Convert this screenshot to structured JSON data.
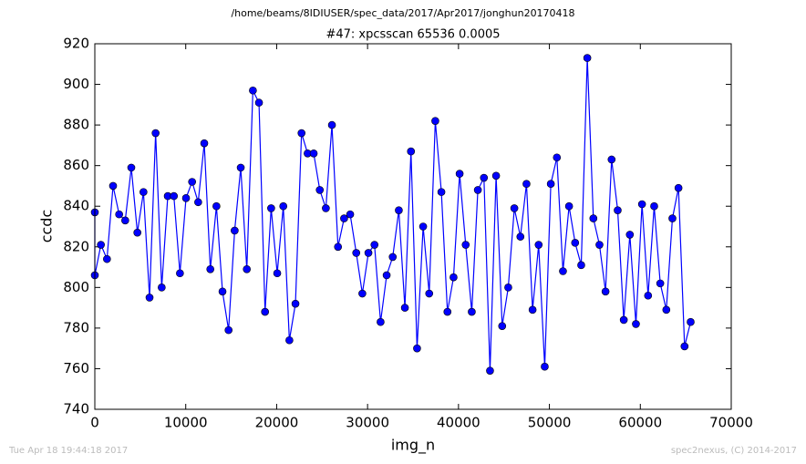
{
  "chart_data": {
    "type": "line",
    "suptitle": "/home/beams/8IDIUSER/spec_data/2017/Apr2017/jonghun20170418",
    "title": "#47: xpcsscan 65536 0.0005",
    "xlabel": "img_n",
    "ylabel": "ccdc",
    "footer_left": "Tue Apr 18 19:44:18 2017",
    "footer_right": "spec2nexus, (C) 2014-2017",
    "xlim": [
      0,
      70000
    ],
    "xticks": [
      0,
      10000,
      20000,
      30000,
      40000,
      50000,
      60000,
      70000
    ],
    "ylim": [
      740,
      920
    ],
    "yticks": [
      740,
      760,
      780,
      800,
      820,
      840,
      860,
      880,
      900,
      920
    ],
    "x": [
      0,
      0,
      669,
      1337,
      2006,
      2675,
      3344,
      4012,
      4681,
      5350,
      6019,
      6687,
      7356,
      8025,
      8694,
      9362,
      10031,
      10700,
      11368,
      12037,
      12706,
      13375,
      14043,
      14712,
      15381,
      16050,
      16718,
      17387,
      18056,
      18724,
      19393,
      20062,
      20731,
      21399,
      22068,
      22737,
      23406,
      24074,
      24743,
      25412,
      26081,
      26749,
      27418,
      28087,
      28755,
      29424,
      30093,
      30762,
      31430,
      32099,
      32768,
      33437,
      34105,
      34774,
      35443,
      36111,
      36780,
      37449,
      38118,
      38786,
      39455,
      40124,
      40793,
      41461,
      42130,
      42799,
      43468,
      44136,
      44805,
      45474,
      46142,
      46811,
      47480,
      48149,
      48817,
      49486,
      50155,
      50824,
      51492,
      52161,
      52830,
      53499,
      54167,
      54836,
      55505,
      56173,
      56842,
      57511,
      58180,
      58848,
      59517,
      60186,
      60855,
      61523,
      62192,
      62861,
      63530,
      64198,
      64867,
      65536
    ],
    "series": [
      {
        "name": "ccdc",
        "color": "#0000ff",
        "values": [
          837,
          806,
          821,
          814,
          850,
          836,
          833,
          859,
          827,
          847,
          795,
          876,
          800,
          845,
          845,
          807,
          844,
          852,
          842,
          871,
          809,
          840,
          798,
          779,
          828,
          859,
          809,
          897,
          891,
          788,
          839,
          807,
          840,
          774,
          792,
          876,
          866,
          866,
          848,
          839,
          880,
          820,
          834,
          836,
          817,
          797,
          817,
          821,
          783,
          806,
          815,
          838,
          790,
          867,
          770,
          830,
          797,
          882,
          847,
          788,
          805,
          856,
          821,
          788,
          848,
          854,
          759,
          855,
          781,
          800,
          839,
          825,
          851,
          789,
          821,
          761,
          851,
          864,
          808,
          840,
          822,
          811,
          913,
          834,
          821,
          798,
          863,
          838,
          784,
          826,
          782,
          841,
          796,
          840,
          802,
          789,
          834,
          849,
          771,
          783
        ]
      }
    ]
  }
}
